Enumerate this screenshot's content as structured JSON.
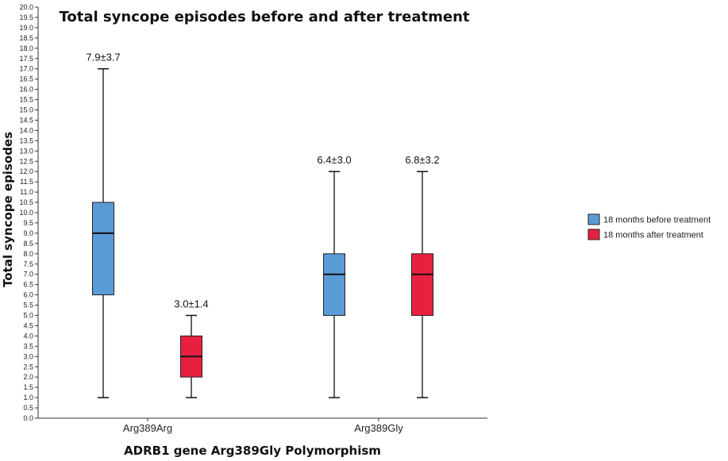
{
  "chart_data": {
    "type": "box",
    "title": "Total syncope episodes before and after treatment",
    "xlabel": "ADRB1 gene Arg389Gly Polymorphism",
    "ylabel": "Total syncope episodes",
    "ylim": [
      0,
      20
    ],
    "ytick_step": 0.5,
    "categories": [
      "Arg389Arg",
      "Arg389Gly"
    ],
    "legend_position": "right",
    "series": [
      {
        "name": "18 months before treatment",
        "color": "#5b9bd5",
        "boxes": [
          {
            "min": 1.0,
            "q1": 6.0,
            "median": 9.0,
            "q3": 10.5,
            "max": 17.0,
            "label": "7.9±3.7"
          },
          {
            "min": 1.0,
            "q1": 5.0,
            "median": 7.0,
            "q3": 8.0,
            "max": 12.0,
            "label": "6.4±3.0"
          }
        ]
      },
      {
        "name": "18 months after treatment",
        "color": "#e8203f",
        "boxes": [
          {
            "min": 1.0,
            "q1": 2.0,
            "median": 3.0,
            "q3": 4.0,
            "max": 5.0,
            "label": "3.0±1.4"
          },
          {
            "min": 1.0,
            "q1": 5.0,
            "median": 7.0,
            "q3": 8.0,
            "max": 12.0,
            "label": "6.8±3.2"
          }
        ]
      }
    ]
  }
}
